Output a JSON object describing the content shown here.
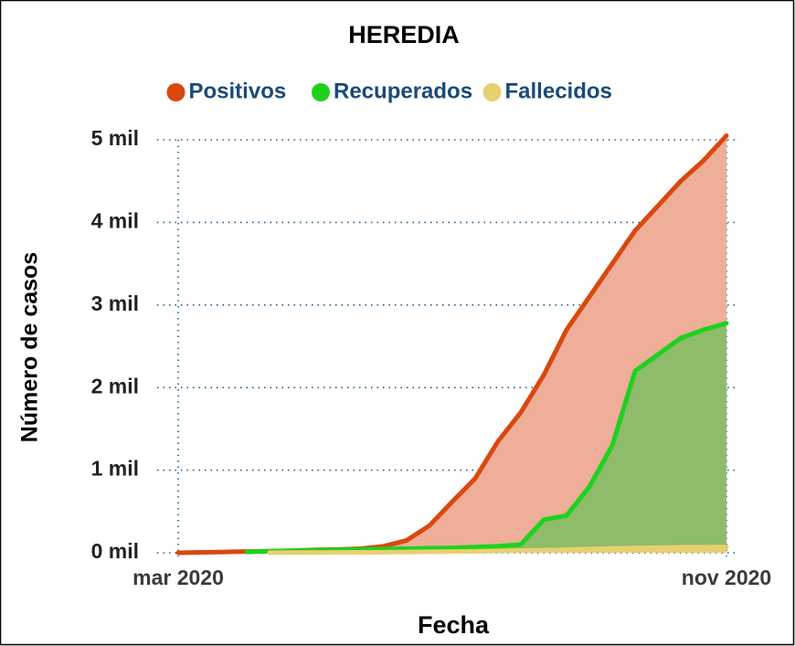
{
  "chart_data": {
    "type": "area",
    "title": "HEREDIA",
    "x_label": "Fecha",
    "y_label": "Número de casos",
    "categories": [
      "mar 2020",
      null,
      null,
      null,
      null,
      null,
      null,
      null,
      null,
      null,
      null,
      null,
      null,
      null,
      null,
      null,
      null,
      null,
      null,
      null,
      null,
      null,
      null,
      null,
      "nov 2020"
    ],
    "series": [
      {
        "name": "Positivos",
        "color": "#d9480f",
        "fill": "#eeae98",
        "values": [
          0,
          5,
          10,
          15,
          20,
          25,
          35,
          40,
          50,
          80,
          150,
          330,
          620,
          900,
          1350,
          1700,
          2150,
          2700,
          3100,
          3500,
          3900,
          4200,
          4500,
          4750,
          5050
        ]
      },
      {
        "name": "Recuperados",
        "color": "#1fd11f",
        "fill": "#8fbc6a",
        "values": [
          null,
          null,
          null,
          10,
          20,
          25,
          30,
          35,
          40,
          45,
          50,
          55,
          60,
          70,
          80,
          100,
          400,
          450,
          800,
          1300,
          2200,
          2400,
          2600,
          2700,
          2780
        ]
      },
      {
        "name": "Fallecidos",
        "color": "#e8d070",
        "fill": "#e8d070",
        "values": [
          null,
          null,
          null,
          null,
          1,
          2,
          3,
          4,
          5,
          7,
          10,
          12,
          15,
          18,
          22,
          27,
          32,
          38,
          45,
          52,
          58,
          62,
          66,
          68,
          70
        ]
      }
    ],
    "ylim": [
      0,
      5000
    ],
    "yticks": [
      {
        "value": 0,
        "label": "0 mil"
      },
      {
        "value": 1000,
        "label": "1 mil"
      },
      {
        "value": 2000,
        "label": "2 mil"
      },
      {
        "value": 3000,
        "label": "3 mil"
      },
      {
        "value": 4000,
        "label": "4 mil"
      },
      {
        "value": 5000,
        "label": "5 mil"
      }
    ],
    "grid": true
  }
}
